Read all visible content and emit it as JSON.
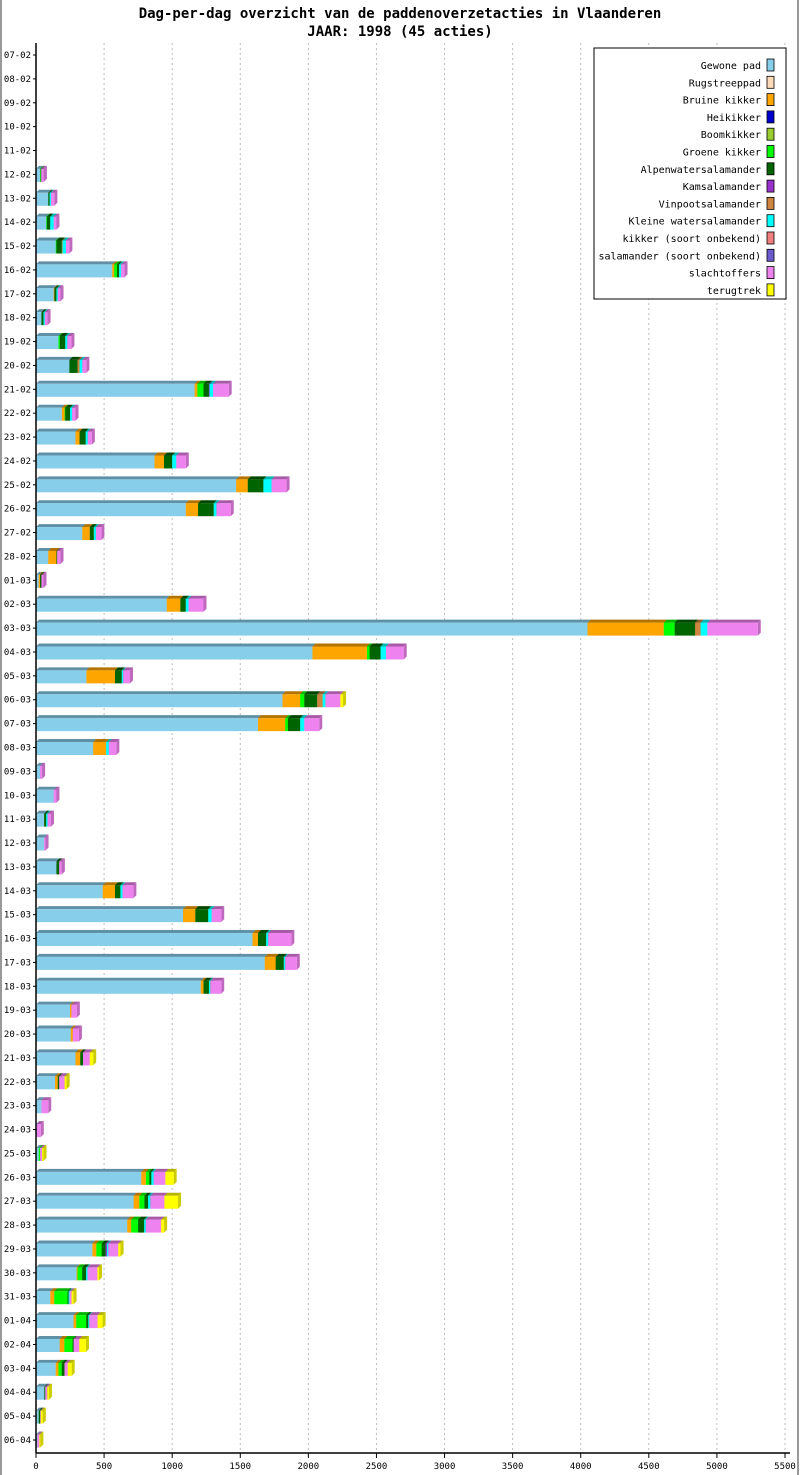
{
  "chart_data": {
    "type": "bar",
    "orientation": "horizontal",
    "stacked": true,
    "title": "Dag-per-dag overzicht van de paddenoverzetacties in Vlaanderen",
    "subtitle": "JAAR: 1998 (45 acties)",
    "xlabel": "",
    "ylabel": "",
    "xlim": [
      0,
      5500
    ],
    "xticks": [
      0,
      500,
      1000,
      1500,
      2000,
      2500,
      3000,
      3500,
      4000,
      4500,
      5000,
      5500
    ],
    "grid": true,
    "legend_position": "top-right",
    "categories": [
      "07-02",
      "08-02",
      "09-02",
      "10-02",
      "11-02",
      "12-02",
      "13-02",
      "14-02",
      "15-02",
      "16-02",
      "17-02",
      "18-02",
      "19-02",
      "20-02",
      "21-02",
      "22-02",
      "23-02",
      "24-02",
      "25-02",
      "26-02",
      "27-02",
      "28-02",
      "01-03",
      "02-03",
      "03-03",
      "04-03",
      "05-03",
      "06-03",
      "07-03",
      "08-03",
      "09-03",
      "10-03",
      "11-03",
      "12-03",
      "13-03",
      "14-03",
      "15-03",
      "16-03",
      "17-03",
      "18-03",
      "19-03",
      "20-03",
      "21-03",
      "22-03",
      "23-03",
      "24-03",
      "25-03",
      "26-03",
      "27-03",
      "28-03",
      "29-03",
      "30-03",
      "31-03",
      "01-04",
      "02-04",
      "03-04",
      "04-04",
      "05-04",
      "06-04"
    ],
    "series": [
      {
        "name": "Gewone pad",
        "color": "#87ceeb"
      },
      {
        "name": "Rugstreeppad",
        "color": "#ffdab9"
      },
      {
        "name": "Bruine kikker",
        "color": "#ffa500"
      },
      {
        "name": "Heikikker",
        "color": "#0000cd"
      },
      {
        "name": "Boomkikker",
        "color": "#9acd32"
      },
      {
        "name": "Groene kikker",
        "color": "#00ff00"
      },
      {
        "name": "Alpenwatersalamander",
        "color": "#006400"
      },
      {
        "name": "Kamsalamander",
        "color": "#9932cc"
      },
      {
        "name": "Vinpootsalamander",
        "color": "#cd853f"
      },
      {
        "name": "Kleine watersalamander",
        "color": "#00ffff"
      },
      {
        "name": "kikker (soort onbekend)",
        "color": "#f08080"
      },
      {
        "name": "salamander (soort onbekend)",
        "color": "#6a5acd"
      },
      {
        "name": "slachtoffers",
        "color": "#ee82ee"
      },
      {
        "name": "terugtrek",
        "color": "#ffff00"
      }
    ],
    "values_by_category": [
      [
        0,
        0,
        0,
        0,
        0,
        0,
        0,
        0,
        0,
        0,
        0,
        0,
        0,
        0
      ],
      [
        0,
        0,
        0,
        0,
        0,
        0,
        0,
        0,
        0,
        0,
        0,
        0,
        0,
        0
      ],
      [
        0,
        0,
        0,
        0,
        0,
        0,
        0,
        0,
        0,
        0,
        0,
        0,
        0,
        0
      ],
      [
        0,
        0,
        0,
        0,
        0,
        0,
        0,
        0,
        0,
        0,
        0,
        0,
        0,
        0
      ],
      [
        0,
        0,
        0,
        0,
        0,
        0,
        0,
        0,
        0,
        0,
        0,
        0,
        0,
        0
      ],
      [
        30,
        0,
        0,
        0,
        0,
        5,
        3,
        0,
        0,
        0,
        0,
        0,
        20,
        0
      ],
      [
        90,
        0,
        0,
        0,
        0,
        0,
        10,
        0,
        0,
        10,
        0,
        0,
        25,
        0
      ],
      [
        75,
        0,
        0,
        0,
        0,
        5,
        25,
        0,
        0,
        25,
        0,
        0,
        20,
        0
      ],
      [
        145,
        0,
        0,
        0,
        0,
        5,
        40,
        0,
        5,
        25,
        0,
        0,
        25,
        0
      ],
      [
        560,
        0,
        15,
        0,
        0,
        20,
        15,
        0,
        0,
        15,
        0,
        0,
        25,
        0
      ],
      [
        130,
        0,
        5,
        0,
        0,
        0,
        15,
        0,
        0,
        10,
        0,
        0,
        20,
        0
      ],
      [
        40,
        0,
        0,
        0,
        0,
        0,
        15,
        0,
        0,
        10,
        0,
        0,
        20,
        0
      ],
      [
        165,
        0,
        0,
        0,
        0,
        10,
        40,
        0,
        0,
        15,
        0,
        0,
        30,
        0
      ],
      [
        245,
        0,
        0,
        0,
        0,
        0,
        60,
        0,
        15,
        20,
        0,
        0,
        30,
        0
      ],
      [
        1165,
        0,
        20,
        0,
        0,
        45,
        40,
        5,
        0,
        25,
        0,
        0,
        115,
        0
      ],
      [
        190,
        0,
        20,
        0,
        0,
        5,
        35,
        0,
        0,
        15,
        0,
        0,
        25,
        0
      ],
      [
        290,
        0,
        30,
        0,
        0,
        0,
        45,
        0,
        0,
        15,
        0,
        0,
        30,
        0
      ],
      [
        870,
        0,
        70,
        0,
        0,
        0,
        60,
        0,
        0,
        30,
        0,
        0,
        70,
        0
      ],
      [
        1470,
        0,
        85,
        0,
        0,
        0,
        115,
        0,
        0,
        60,
        0,
        0,
        110,
        0
      ],
      [
        1100,
        0,
        90,
        0,
        0,
        0,
        115,
        0,
        0,
        20,
        0,
        0,
        105,
        0
      ],
      [
        340,
        0,
        55,
        0,
        0,
        0,
        30,
        0,
        0,
        15,
        0,
        0,
        40,
        0
      ],
      [
        90,
        0,
        60,
        0,
        0,
        0,
        5,
        0,
        0,
        0,
        0,
        0,
        25,
        0
      ],
      [
        20,
        0,
        10,
        0,
        0,
        0,
        10,
        0,
        0,
        0,
        0,
        0,
        15,
        0
      ],
      [
        960,
        0,
        100,
        0,
        0,
        0,
        40,
        0,
        0,
        20,
        0,
        0,
        110,
        0
      ],
      [
        4050,
        0,
        560,
        0,
        0,
        80,
        150,
        0,
        40,
        50,
        0,
        0,
        370,
        0
      ],
      [
        2030,
        0,
        400,
        0,
        0,
        20,
        80,
        0,
        0,
        40,
        0,
        0,
        130,
        0
      ],
      [
        370,
        0,
        210,
        0,
        0,
        0,
        50,
        0,
        0,
        10,
        0,
        0,
        50,
        0
      ],
      [
        1810,
        0,
        130,
        0,
        0,
        30,
        95,
        0,
        40,
        20,
        0,
        0,
        110,
        20
      ],
      [
        1630,
        0,
        200,
        0,
        0,
        20,
        90,
        0,
        0,
        30,
        0,
        0,
        110,
        0
      ],
      [
        420,
        0,
        95,
        0,
        0,
        0,
        0,
        0,
        0,
        20,
        0,
        0,
        55,
        0
      ],
      [
        30,
        0,
        0,
        0,
        0,
        0,
        0,
        0,
        0,
        0,
        0,
        0,
        15,
        0
      ],
      [
        130,
        0,
        0,
        0,
        0,
        0,
        0,
        0,
        0,
        0,
        0,
        0,
        20,
        0
      ],
      [
        60,
        0,
        0,
        0,
        0,
        0,
        15,
        0,
        0,
        10,
        0,
        0,
        25,
        0
      ],
      [
        60,
        0,
        0,
        0,
        0,
        0,
        0,
        0,
        0,
        0,
        0,
        0,
        10,
        0
      ],
      [
        150,
        0,
        0,
        0,
        0,
        0,
        20,
        0,
        0,
        0,
        0,
        0,
        20,
        0
      ],
      [
        490,
        0,
        90,
        0,
        0,
        0,
        40,
        0,
        0,
        15,
        0,
        0,
        80,
        0
      ],
      [
        1080,
        0,
        90,
        0,
        0,
        0,
        95,
        0,
        0,
        25,
        0,
        0,
        70,
        0
      ],
      [
        1590,
        0,
        40,
        0,
        0,
        0,
        60,
        0,
        0,
        15,
        0,
        0,
        170,
        0
      ],
      [
        1680,
        0,
        80,
        0,
        0,
        0,
        60,
        0,
        0,
        10,
        0,
        0,
        85,
        0
      ],
      [
        1210,
        0,
        20,
        0,
        0,
        0,
        40,
        0,
        0,
        10,
        0,
        0,
        80,
        0
      ],
      [
        250,
        0,
        10,
        0,
        0,
        0,
        0,
        0,
        0,
        0,
        0,
        0,
        40,
        0
      ],
      [
        255,
        0,
        15,
        0,
        0,
        0,
        0,
        0,
        0,
        0,
        0,
        0,
        45,
        0
      ],
      [
        290,
        0,
        35,
        0,
        0,
        0,
        20,
        0,
        0,
        0,
        0,
        0,
        50,
        25
      ],
      [
        140,
        0,
        20,
        0,
        0,
        0,
        10,
        0,
        0,
        0,
        0,
        0,
        40,
        15
      ],
      [
        40,
        0,
        0,
        0,
        0,
        0,
        0,
        0,
        0,
        0,
        0,
        0,
        50,
        0
      ],
      [
        5,
        0,
        0,
        0,
        0,
        0,
        0,
        0,
        0,
        0,
        0,
        0,
        30,
        0
      ],
      [
        20,
        0,
        0,
        0,
        0,
        10,
        0,
        0,
        0,
        0,
        0,
        0,
        15,
        10
      ],
      [
        773,
        0,
        34,
        0,
        0,
        25,
        15,
        0,
        0,
        17,
        0,
        0,
        86,
        61
      ],
      [
        717,
        0,
        42,
        0,
        0,
        37,
        27,
        0,
        0,
        17,
        0,
        0,
        103,
        100
      ],
      [
        670,
        0,
        29,
        0,
        0,
        51,
        44,
        0,
        0,
        12,
        0,
        0,
        113,
        22
      ],
      [
        414,
        0,
        29,
        0,
        0,
        39,
        29,
        10,
        0,
        10,
        0,
        0,
        73,
        17
      ],
      [
        298,
        0,
        7,
        0,
        0,
        34,
        29,
        0,
        0,
        10,
        0,
        0,
        73,
        12
      ],
      [
        105,
        0,
        29,
        0,
        0,
        98,
        7,
        0,
        0,
        7,
        0,
        0,
        15,
        15
      ],
      [
        276,
        0,
        20,
        0,
        0,
        73,
        15,
        0,
        0,
        7,
        0,
        0,
        61,
        37
      ],
      [
        174,
        0,
        34,
        0,
        0,
        61,
        7,
        0,
        0,
        0,
        0,
        0,
        42,
        49
      ],
      [
        145,
        0,
        20,
        0,
        0,
        24,
        20,
        0,
        0,
        0,
        0,
        0,
        24,
        29
      ],
      [
        61,
        0,
        0,
        0,
        0,
        0,
        7,
        0,
        0,
        0,
        0,
        0,
        15,
        12
      ],
      [
        20,
        0,
        0,
        0,
        0,
        0,
        10,
        0,
        0,
        0,
        0,
        0,
        5,
        15
      ],
      [
        10,
        0,
        0,
        0,
        0,
        0,
        0,
        0,
        0,
        0,
        0,
        0,
        15,
        7
      ]
    ]
  }
}
